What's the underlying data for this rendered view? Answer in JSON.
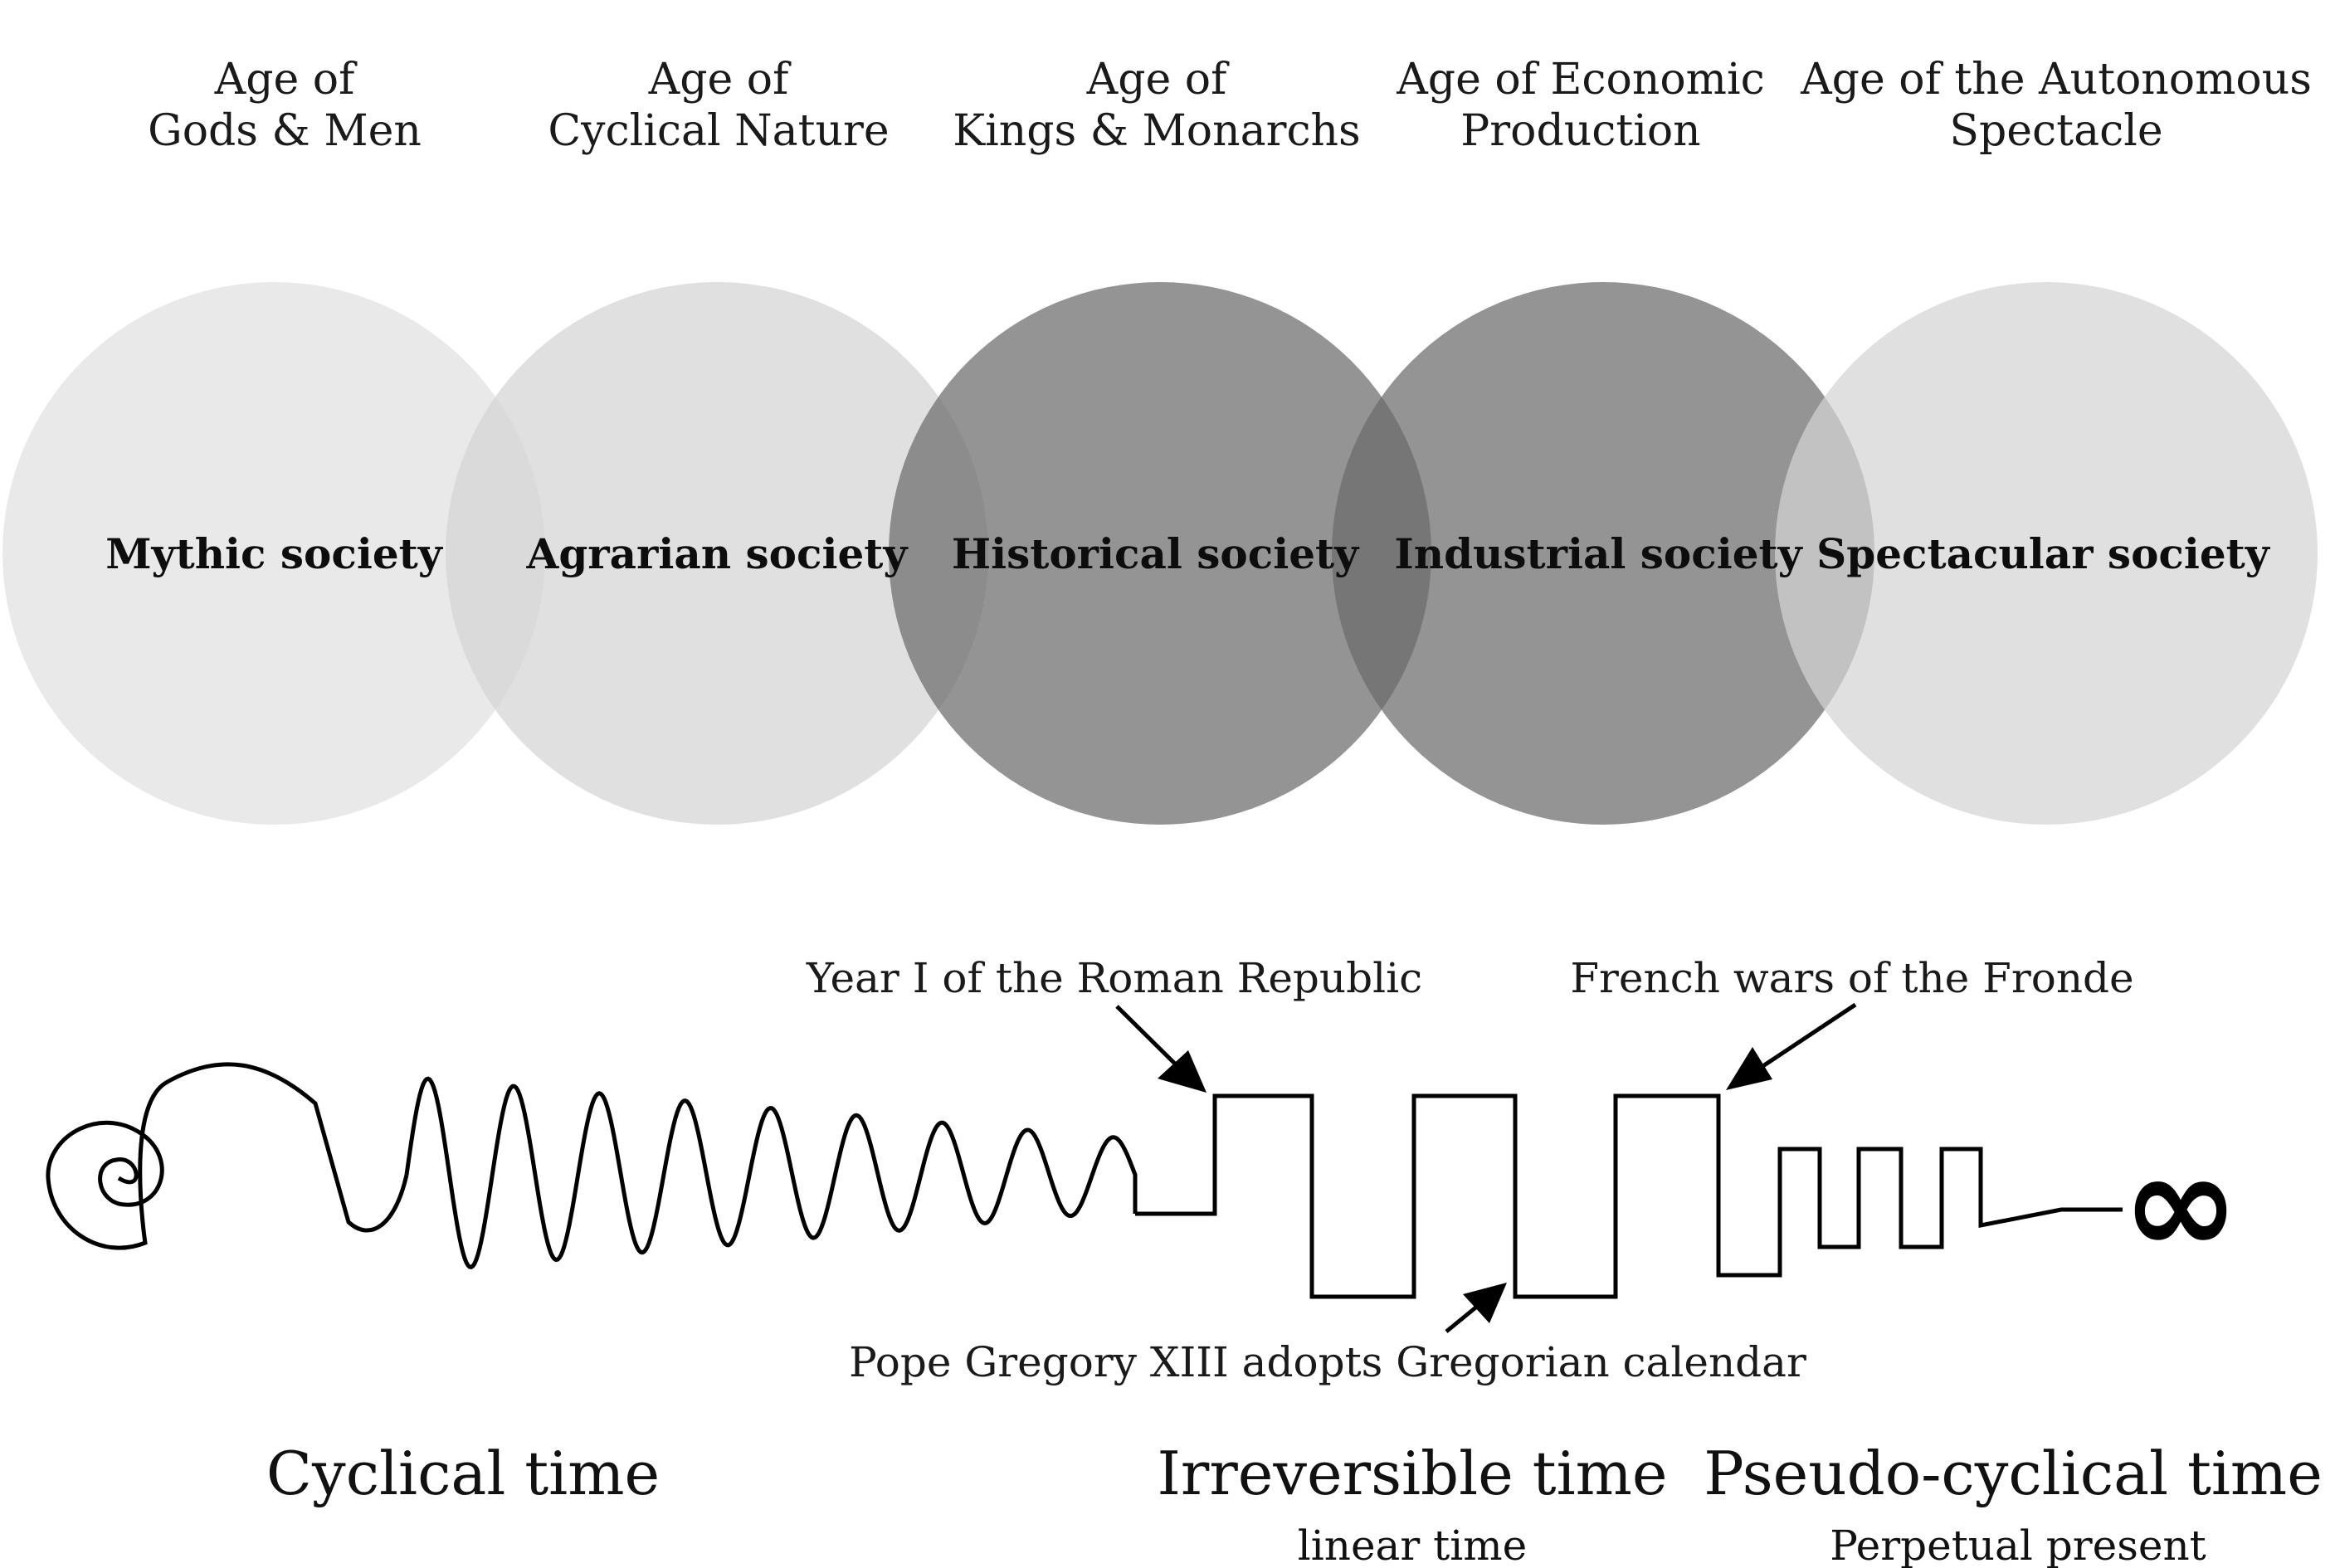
{
  "ages": [
    {
      "line1": "Age of",
      "line2": "Gods & Men"
    },
    {
      "line1": "Age of",
      "line2": "Cyclical Nature"
    },
    {
      "line1": "Age of",
      "line2": "Kings & Monarchs"
    },
    {
      "line1": "Age of Economic",
      "line2": "Production"
    },
    {
      "line1": "Age of the Autonomous",
      "line2": "Spectacle"
    }
  ],
  "societies": [
    {
      "label": "Mythic society",
      "color": "#e0e0e0"
    },
    {
      "label": "Agrarian society",
      "color": "#d4d4d4"
    },
    {
      "label": "Historical society",
      "color": "#6b6b6b"
    },
    {
      "label": "Industrial society",
      "color": "#6b6b6b"
    },
    {
      "label": "Spectacular society",
      "color": "#d4d4d4"
    }
  ],
  "events": {
    "roman_republic": "Year I of the Roman Republic",
    "fronde": "French wars of the Fronde",
    "gregorian": "Pope Gregory XIII adopts Gregorian calendar"
  },
  "infinity_symbol": "∞",
  "times": {
    "cyclical": {
      "title": "Cyclical time"
    },
    "irreversible": {
      "title": "Irreversible time",
      "subtitle": "linear time"
    },
    "pseudo": {
      "title": "Pseudo-cyclical time",
      "subtitle": "Perpetual present"
    }
  }
}
